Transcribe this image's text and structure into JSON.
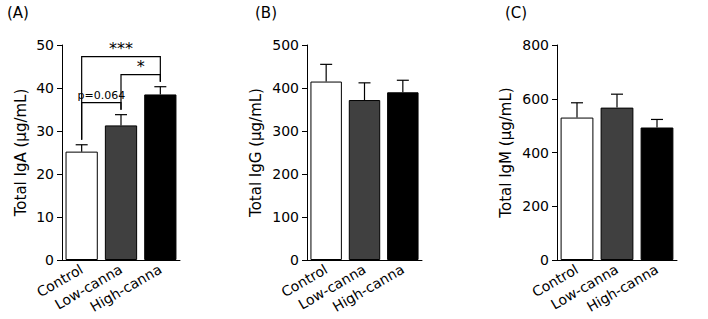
{
  "chart_data": [
    {
      "type": "bar",
      "title": "(A)",
      "y_label": "Total IgA (μg/mL)",
      "categories": [
        "Control",
        "Low-canna",
        "High-canna"
      ],
      "values": [
        25.2,
        31.3,
        38.5
      ],
      "errors": [
        1.6,
        2.5,
        1.8
      ],
      "colors": [
        "#ffffff",
        "#404040",
        "#000000"
      ],
      "ylim": [
        0,
        50
      ],
      "yticks": [
        0,
        10,
        20,
        30,
        40,
        50
      ],
      "grid": false,
      "annotations": [
        {
          "text": "p=0.064",
          "from": "Control",
          "to": "Low-canna"
        },
        {
          "text": "*",
          "from": "Low-canna",
          "to": "High-canna"
        },
        {
          "text": "***",
          "from": "Control",
          "to": "High-canna"
        }
      ]
    },
    {
      "type": "bar",
      "title": "(B)",
      "y_label": "Total IgG (μg/mL)",
      "categories": [
        "Control",
        "Low-canna",
        "High-canna"
      ],
      "values": [
        415,
        372,
        390
      ],
      "errors": [
        40,
        40,
        28
      ],
      "colors": [
        "#ffffff",
        "#404040",
        "#000000"
      ],
      "ylim": [
        0,
        500
      ],
      "yticks": [
        0,
        100,
        200,
        300,
        400,
        500
      ],
      "grid": false
    },
    {
      "type": "bar",
      "title": "(C)",
      "y_label": "Total IgM (μg/mL)",
      "categories": [
        "Control",
        "Low-canna",
        "High-canna"
      ],
      "values": [
        530,
        567,
        493
      ],
      "errors": [
        55,
        50,
        30
      ],
      "colors": [
        "#ffffff",
        "#404040",
        "#000000"
      ],
      "ylim": [
        0,
        800
      ],
      "yticks": [
        0,
        200,
        400,
        600,
        800
      ],
      "grid": false
    }
  ]
}
